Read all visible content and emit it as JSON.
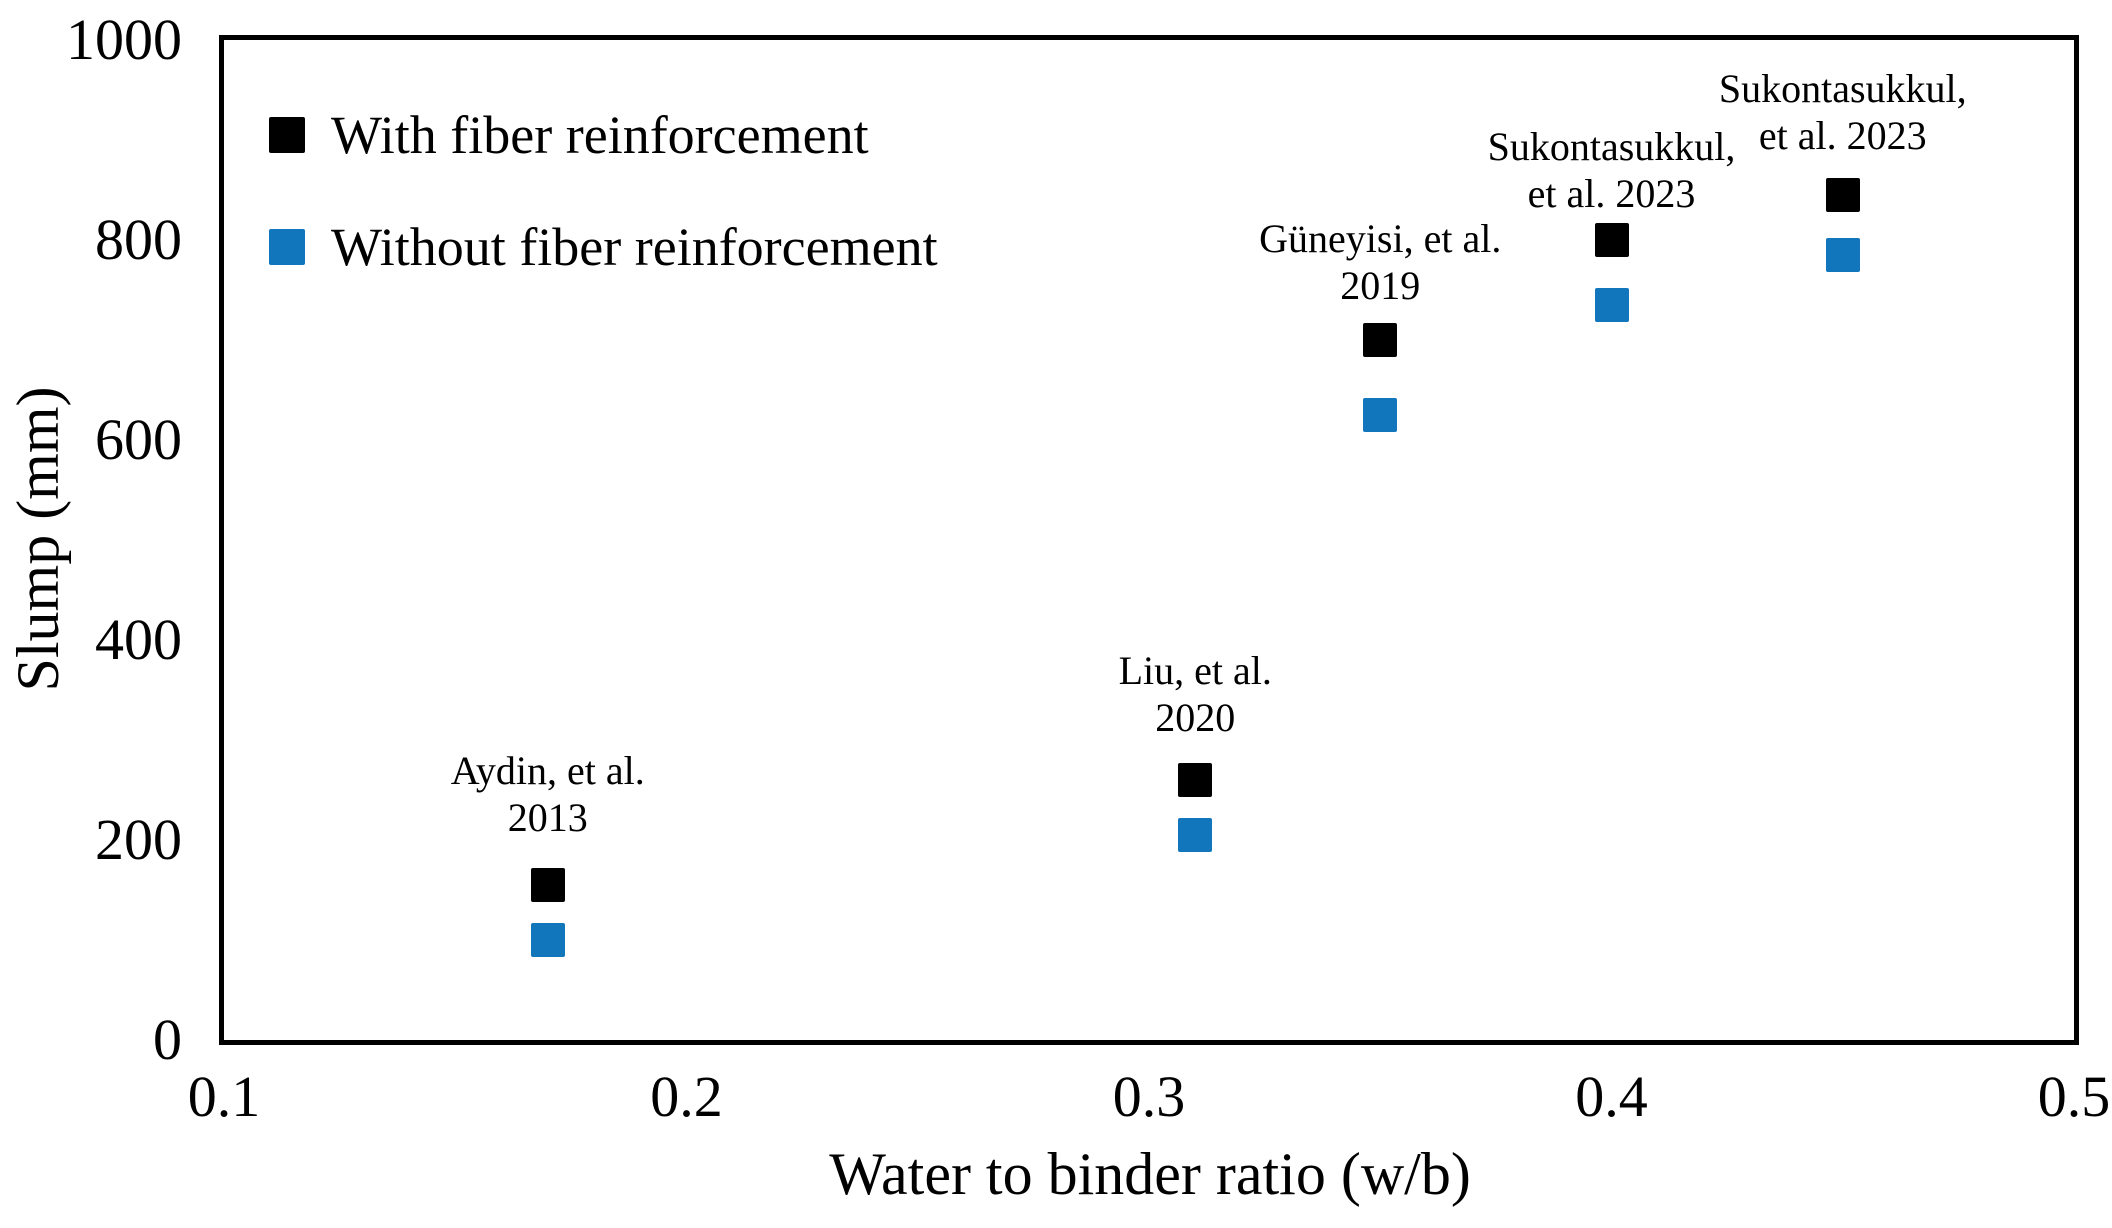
{
  "chart_data": {
    "type": "scatter",
    "title": "",
    "xlabel": "Water to binder ratio (w/b)",
    "ylabel": "Slump (mm)",
    "xlim": [
      0.1,
      0.5
    ],
    "ylim": [
      0,
      1000
    ],
    "x_ticks": [
      0.1,
      0.2,
      0.3,
      0.4,
      0.5
    ],
    "y_ticks": [
      0,
      200,
      400,
      600,
      800,
      1000
    ],
    "grid": false,
    "legend_position": "top-left-inside",
    "marker_shape": "square",
    "colors": {
      "with_fiber": "#000000",
      "without_fiber": "#1176BC"
    },
    "series": [
      {
        "name": "With fiber reinforcement",
        "color": "#000000",
        "points": [
          {
            "x": 0.17,
            "y": 155
          },
          {
            "x": 0.31,
            "y": 260
          },
          {
            "x": 0.35,
            "y": 700
          },
          {
            "x": 0.4,
            "y": 800
          },
          {
            "x": 0.45,
            "y": 845
          }
        ]
      },
      {
        "name": "Without fiber reinforcement",
        "color": "#1176BC",
        "points": [
          {
            "x": 0.17,
            "y": 100
          },
          {
            "x": 0.31,
            "y": 205
          },
          {
            "x": 0.35,
            "y": 625
          },
          {
            "x": 0.4,
            "y": 735
          },
          {
            "x": 0.45,
            "y": 785
          }
        ]
      }
    ],
    "annotations": [
      {
        "lines": [
          "Aydin, et al.",
          "2013"
        ],
        "x": 0.17,
        "y": 246
      },
      {
        "lines": [
          "Liu, et al.",
          "2020"
        ],
        "x": 0.31,
        "y": 346
      },
      {
        "lines": [
          "Güneyisi, et al.",
          "2019"
        ],
        "x": 0.35,
        "y": 778
      },
      {
        "lines": [
          "Sukontasukkul,",
          "et al. 2023"
        ],
        "x": 0.4,
        "y": 870
      },
      {
        "lines": [
          "Sukontasukkul,",
          "et al. 2023"
        ],
        "x": 0.45,
        "y": 928
      }
    ]
  }
}
